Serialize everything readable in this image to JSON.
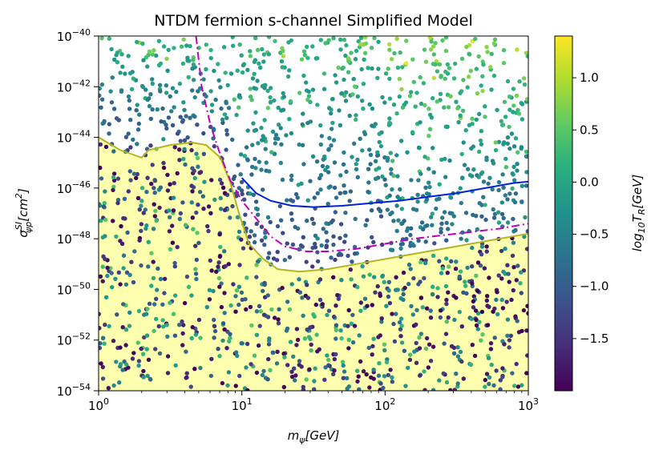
{
  "chart_data": {
    "type": "scatter",
    "title": "NTDM fermion s-channel Simplified Model",
    "xlabel": {
      "base": "m",
      "sub": "ψ",
      "rest": "[GeV]"
    },
    "ylabel": {
      "base": "σ",
      "sup": "SI",
      "sub": "ψp",
      "rest": "[cm",
      "rest_sup": "2",
      "rest_end": "]"
    },
    "x_scale": "log",
    "y_scale": "log",
    "xlim_log10": [
      0,
      3
    ],
    "ylim_log10": [
      -54,
      -40
    ],
    "x_ticks": [
      {
        "exp": "0",
        "log10": 0
      },
      {
        "exp": "1",
        "log10": 1
      },
      {
        "exp": "2",
        "log10": 2
      },
      {
        "exp": "3",
        "log10": 3
      }
    ],
    "y_ticks": [
      {
        "exp": "−54",
        "log10": -54
      },
      {
        "exp": "−52",
        "log10": -52
      },
      {
        "exp": "−50",
        "log10": -50
      },
      {
        "exp": "−48",
        "log10": -48
      },
      {
        "exp": "−46",
        "log10": -46
      },
      {
        "exp": "−44",
        "log10": -44
      },
      {
        "exp": "−42",
        "log10": -42
      },
      {
        "exp": "−40",
        "log10": -40
      }
    ],
    "colorbar": {
      "label": {
        "base": "log",
        "sub": "10",
        "rest": "T",
        "rest_sub": "R",
        "end": "[GeV]"
      },
      "range": [
        -2.0,
        1.4
      ],
      "ticks": [
        {
          "label": "1.0",
          "value": 1.0
        },
        {
          "label": "0.5",
          "value": 0.5
        },
        {
          "label": "0.0",
          "value": 0.0
        },
        {
          "label": "−0.5",
          "value": -0.5
        },
        {
          "label": "−1.0",
          "value": -1.0
        },
        {
          "label": "−1.5",
          "value": -1.5
        }
      ]
    },
    "excluded_region": {
      "name": "upper limit (yellow)",
      "fill": "#ffffb0",
      "line": "#b5b520",
      "points_log10": [
        [
          0,
          -44.0
        ],
        [
          0.15,
          -44.5
        ],
        [
          0.3,
          -44.8
        ],
        [
          0.35,
          -44.5
        ],
        [
          0.5,
          -44.3
        ],
        [
          0.65,
          -44.2
        ],
        [
          0.75,
          -44.3
        ],
        [
          0.85,
          -44.8
        ],
        [
          0.92,
          -45.8
        ],
        [
          0.98,
          -47.0
        ],
        [
          1.05,
          -48.2
        ],
        [
          1.15,
          -48.8
        ],
        [
          1.25,
          -49.2
        ],
        [
          1.4,
          -49.3
        ],
        [
          1.6,
          -49.2
        ],
        [
          1.8,
          -49.0
        ],
        [
          2.0,
          -48.8
        ],
        [
          2.2,
          -48.6
        ],
        [
          2.5,
          -48.3
        ],
        [
          2.8,
          -48.0
        ],
        [
          3.0,
          -47.8
        ]
      ]
    },
    "curves": [
      {
        "name": "dash-dot magenta",
        "color": "#c000c0",
        "dash": "10,4,2,4",
        "points_log10": [
          [
            0.68,
            -40.0
          ],
          [
            0.72,
            -42.0
          ],
          [
            0.78,
            -43.5
          ],
          [
            0.85,
            -44.7
          ],
          [
            0.92,
            -45.7
          ],
          [
            1.0,
            -46.5
          ],
          [
            1.1,
            -47.2
          ],
          [
            1.2,
            -47.9
          ],
          [
            1.3,
            -48.3
          ],
          [
            1.45,
            -48.5
          ],
          [
            1.6,
            -48.5
          ],
          [
            1.8,
            -48.4
          ],
          [
            2.0,
            -48.2
          ],
          [
            2.2,
            -48.0
          ],
          [
            2.5,
            -47.8
          ],
          [
            2.8,
            -47.6
          ],
          [
            3.0,
            -47.4
          ]
        ]
      },
      {
        "name": "solid blue",
        "color": "#0020e0",
        "dash": "",
        "points_log10": [
          [
            1.0,
            -45.6
          ],
          [
            1.1,
            -46.2
          ],
          [
            1.2,
            -46.5
          ],
          [
            1.35,
            -46.7
          ],
          [
            1.5,
            -46.75
          ],
          [
            1.7,
            -46.7
          ],
          [
            1.9,
            -46.6
          ],
          [
            2.1,
            -46.5
          ],
          [
            2.3,
            -46.35
          ],
          [
            2.5,
            -46.2
          ],
          [
            2.7,
            -46.0
          ],
          [
            2.9,
            -45.8
          ],
          [
            3.0,
            -45.75
          ]
        ]
      }
    ],
    "n_points": 1800
  }
}
